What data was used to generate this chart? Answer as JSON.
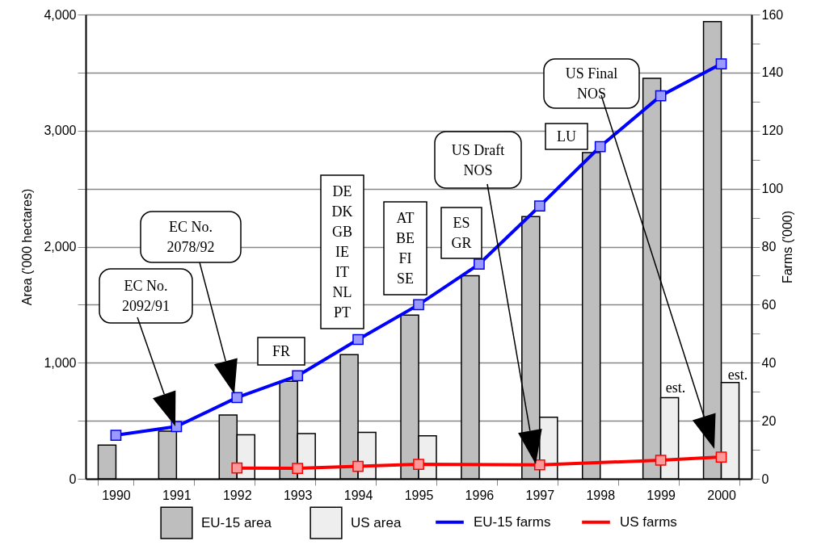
{
  "chart_data": {
    "type": "bar",
    "ylabel": "Area ('000 hectares)",
    "y2label": "Farms ('000)",
    "categories": [
      "1990",
      "1991",
      "1992",
      "1993",
      "1994",
      "1995",
      "1996",
      "1997",
      "1998",
      "1999",
      "2000"
    ],
    "series": [
      {
        "name": "EU-15 area",
        "type": "bar",
        "color": "#bebebe",
        "values": [
          290,
          410,
          550,
          840,
          1070,
          1410,
          1750,
          2260,
          2810,
          3450,
          3940
        ]
      },
      {
        "name": "US area",
        "type": "bar",
        "color": "#eeeeee",
        "values": [
          null,
          null,
          380,
          390,
          400,
          370,
          null,
          530,
          null,
          700,
          830
        ]
      },
      {
        "name": "EU-15 farms",
        "type": "line",
        "axis": "y2",
        "color": "#0000ff",
        "values": [
          15,
          18,
          28,
          35.5,
          48,
          60,
          74,
          94,
          114.5,
          132,
          143
        ]
      },
      {
        "name": "US farms",
        "type": "line",
        "axis": "y2",
        "color": "#ff0000",
        "values": [
          null,
          null,
          3.7,
          3.6,
          4.3,
          5,
          null,
          4.8,
          null,
          6.4,
          7.5
        ]
      }
    ],
    "ylim": [
      0,
      4000
    ],
    "yticks": [
      0,
      {
        "value": 500,
        "label": null
      },
      {
        "value": 1000,
        "label": "1,000"
      },
      {
        "value": 1500,
        "label": null
      },
      {
        "value": 2000,
        "label": "2,000"
      },
      {
        "value": 2500,
        "label": null
      },
      {
        "value": 3000,
        "label": "3,000"
      },
      {
        "value": 3500,
        "label": null
      },
      {
        "value": 4000,
        "label": "4,000"
      }
    ],
    "y2lim": [
      0,
      160
    ],
    "y2ticks": [
      0,
      {
        "value": 10,
        "label": null
      },
      20,
      {
        "value": 30,
        "label": null
      },
      40,
      {
        "value": 50,
        "label": null
      },
      60,
      {
        "value": 70,
        "label": null
      },
      80,
      {
        "value": 90,
        "label": null
      },
      100,
      {
        "value": 110,
        "label": null
      },
      120,
      {
        "value": 130,
        "label": null
      },
      140,
      {
        "value": 150,
        "label": null
      },
      160
    ],
    "grid": "y",
    "legend": "bottom",
    "marker": "square",
    "annotations": [
      "EC No.\n2092/91",
      "EC No.\n2078/92",
      "FR",
      "DE\nDK\nGB\nIE\nIT\nNL\nPT",
      "AT\nBE\nFI\nSE",
      "ES\nGR",
      "LU",
      "US Draft\nNOS",
      "US Final\nNOS",
      "est.",
      "est."
    ]
  }
}
